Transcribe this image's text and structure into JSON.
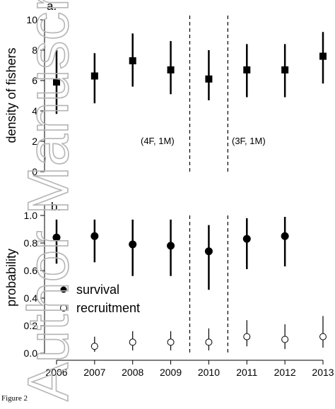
{
  "figure_caption": "Figure 2",
  "watermark_text": "Author Manuscript",
  "colors": {
    "ink": "#000000",
    "watermark": "#b5b5b5"
  },
  "chart_data": [
    {
      "panel_label": "a.",
      "type": "scatter",
      "marker": "filled-square",
      "x": [
        2006,
        2007,
        2008,
        2009,
        2010,
        2011,
        2012,
        2013
      ],
      "y": [
        5.9,
        6.3,
        7.3,
        6.7,
        6.1,
        6.7,
        6.7,
        7.6
      ],
      "error_low": [
        3.8,
        4.5,
        5.6,
        5.1,
        4.7,
        4.9,
        4.9,
        5.8
      ],
      "error_high": [
        8.0,
        7.8,
        9.1,
        8.6,
        8.0,
        8.4,
        8.4,
        9.2
      ],
      "ylabel": "density of fishers",
      "ylim": [
        0,
        10
      ],
      "yticks": [
        "0",
        "2",
        "4",
        "6",
        "8",
        "10"
      ],
      "vlines": [
        2009.5,
        2010.5
      ],
      "annotations": [
        "(4F, 1M)",
        "(3F, 1M)"
      ],
      "grid": false
    },
    {
      "panel_label": "b.",
      "type": "scatter",
      "ylabel": "probability",
      "ylim": [
        0,
        1.1
      ],
      "yticks": [
        "0.0",
        "0.2",
        "0.4",
        "0.6",
        "0.8",
        "1.0"
      ],
      "x": [
        2006,
        2007,
        2008,
        2009,
        2010,
        2011,
        2012,
        2013
      ],
      "xticks": [
        "2006",
        "2007",
        "2008",
        "2009",
        "2010",
        "2011",
        "2012",
        "2013"
      ],
      "vlines": [
        2009.5,
        2010.5
      ],
      "legend_position": "left",
      "grid": false,
      "series": [
        {
          "name": "survival",
          "marker": "filled-circle",
          "x": [
            2006,
            2007,
            2008,
            2009,
            2010,
            2011,
            2012
          ],
          "values": [
            0.84,
            0.85,
            0.79,
            0.78,
            0.74,
            0.83,
            0.85
          ],
          "error_low": [
            0.65,
            0.66,
            0.56,
            0.56,
            0.46,
            0.61,
            0.63
          ],
          "error_high": [
            0.97,
            0.97,
            0.97,
            0.97,
            0.93,
            0.98,
            0.99
          ]
        },
        {
          "name": "recruitment",
          "marker": "open-circle",
          "x": [
            2007,
            2008,
            2009,
            2010,
            2011,
            2012,
            2013
          ],
          "values": [
            0.05,
            0.08,
            0.08,
            0.08,
            0.12,
            0.1,
            0.12
          ],
          "error_low": [
            0.01,
            0.02,
            0.02,
            0.02,
            0.05,
            0.03,
            0.04
          ],
          "error_high": [
            0.12,
            0.16,
            0.16,
            0.18,
            0.24,
            0.21,
            0.27
          ]
        }
      ]
    }
  ]
}
